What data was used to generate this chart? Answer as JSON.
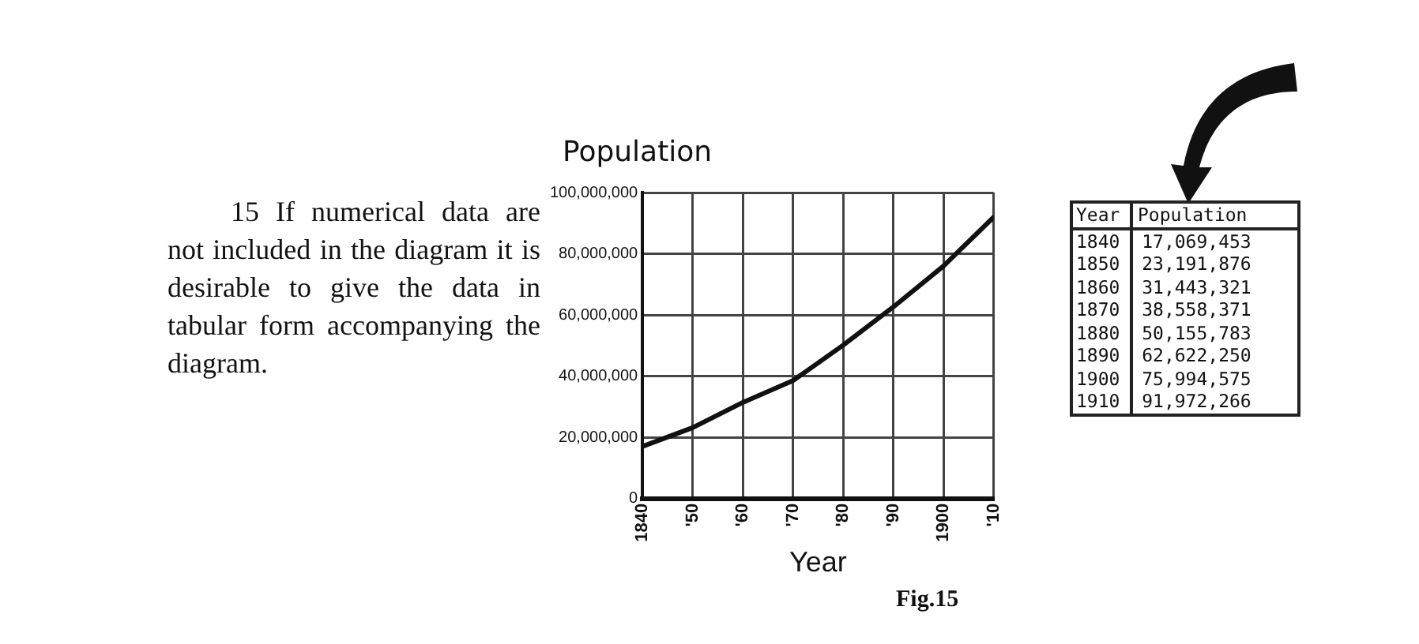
{
  "chart_data": [
    {
      "type": "line",
      "xlabel": "Year",
      "ylabel": "Population",
      "annotations": [
        "15 If numerical data are not included in the diagram it is desirable to give the data in tabular form accompanying the diagram.",
        "Fig.15"
      ],
      "x": [
        1840,
        1850,
        1860,
        1870,
        1880,
        1890,
        1900,
        1910
      ],
      "series": [
        {
          "color": "#111111",
          "values": [
            17069453,
            23191876,
            31443321,
            38558371,
            50155783,
            62622250,
            75994575,
            91972266
          ]
        }
      ],
      "xlim": [
        1840,
        1910
      ],
      "xticks": [
        1840,
        {
          "value": 1850,
          "label": "'50"
        },
        {
          "value": 1860,
          "label": "'60"
        },
        {
          "value": 1870,
          "label": "'70"
        },
        {
          "value": 1880,
          "label": "'80"
        },
        {
          "value": 1890,
          "label": "'90"
        },
        1900,
        {
          "value": 1910,
          "label": "'10"
        }
      ],
      "ylim": [
        0,
        100000000
      ],
      "yticks": [
        0,
        {
          "value": 20000000,
          "label": "20,000,000"
        },
        {
          "value": 40000000,
          "label": "40,000,000"
        },
        {
          "value": 60000000,
          "label": "60,000,000"
        },
        {
          "value": 80000000,
          "label": "80,000,000"
        },
        {
          "value": 100000000,
          "label": "100,000,000"
        }
      ],
      "grid": true,
      "marker": "none",
      "line_style": "solid",
      "legend": false
    },
    {
      "type": "other",
      "annotations": [
        "Year",
        "Population",
        "1840 17,069,453",
        "1850 23,191,876",
        "1860 31,443,321",
        "1870 38,558,371",
        "1880 50,155,783",
        "1890 62,622,250",
        "1900 75,994,575",
        "1910 91,972,266"
      ]
    }
  ]
}
